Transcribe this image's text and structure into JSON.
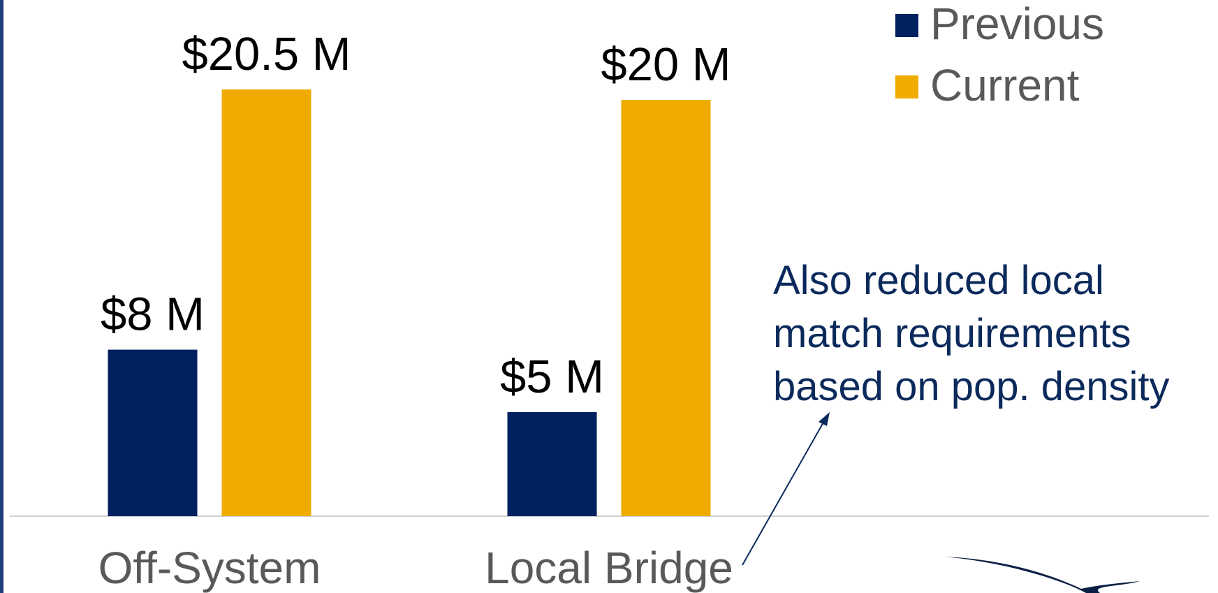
{
  "chart_data": {
    "type": "bar",
    "categories": [
      "Off-System",
      "Local Bridge"
    ],
    "series": [
      {
        "name": "Previous",
        "color": "#002060",
        "values": [
          8,
          5
        ],
        "value_labels": [
          "$8 M",
          "$5 M"
        ]
      },
      {
        "name": "Current",
        "color": "#f0ab00",
        "values": [
          20.5,
          20
        ],
        "value_labels": [
          "$20.5 M",
          "$20 M"
        ]
      }
    ],
    "ylim": [
      0,
      24.8
    ],
    "legend": "upper right",
    "annotation": [
      "Also reduced local",
      "match requirements",
      "based on pop. density"
    ]
  }
}
